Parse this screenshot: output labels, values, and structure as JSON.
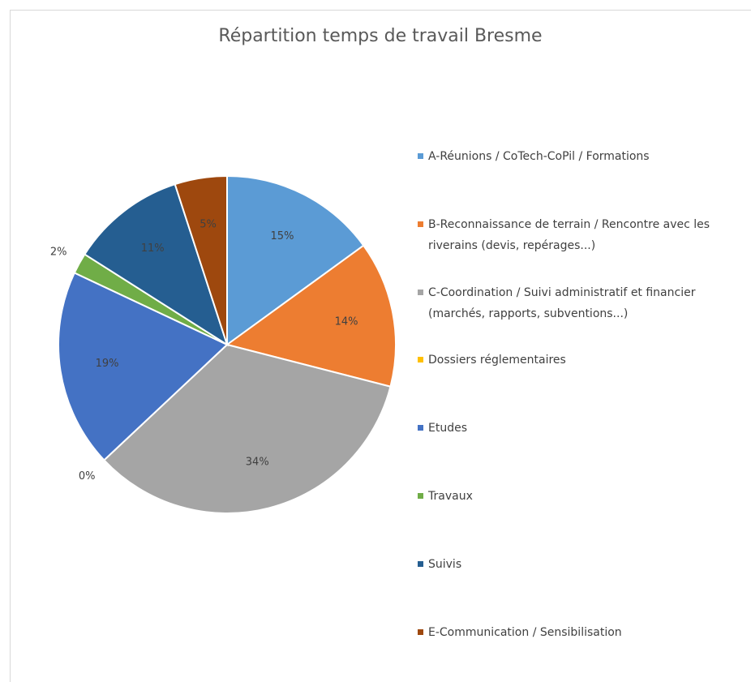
{
  "chart_data": {
    "type": "pie",
    "title": "Répartition  temps de travail Bresme",
    "categories": [
      "A-Réunions / CoTech-CoPil / Formations",
      "B-Reconnaissance de terrain / Rencontre avec les riverains (devis, repérages...)",
      "C-Coordination / Suivi administratif et financier (marchés, rapports, subventions...)",
      "Dossiers réglementaires",
      "Etudes",
      "Travaux",
      "Suivis",
      "E-Communication / Sensibilisation"
    ],
    "values": [
      15,
      14,
      34,
      0,
      19,
      2,
      11,
      5
    ],
    "value_labels": [
      "15%",
      "14%",
      "34%",
      "0%",
      "19%",
      "2%",
      "11%",
      "5%"
    ],
    "colors": [
      "#5b9bd5",
      "#ed7d31",
      "#a5a5a5",
      "#ffc000",
      "#4472c4",
      "#70ad47",
      "#255e91",
      "#9e480e"
    ],
    "legend": "right"
  }
}
